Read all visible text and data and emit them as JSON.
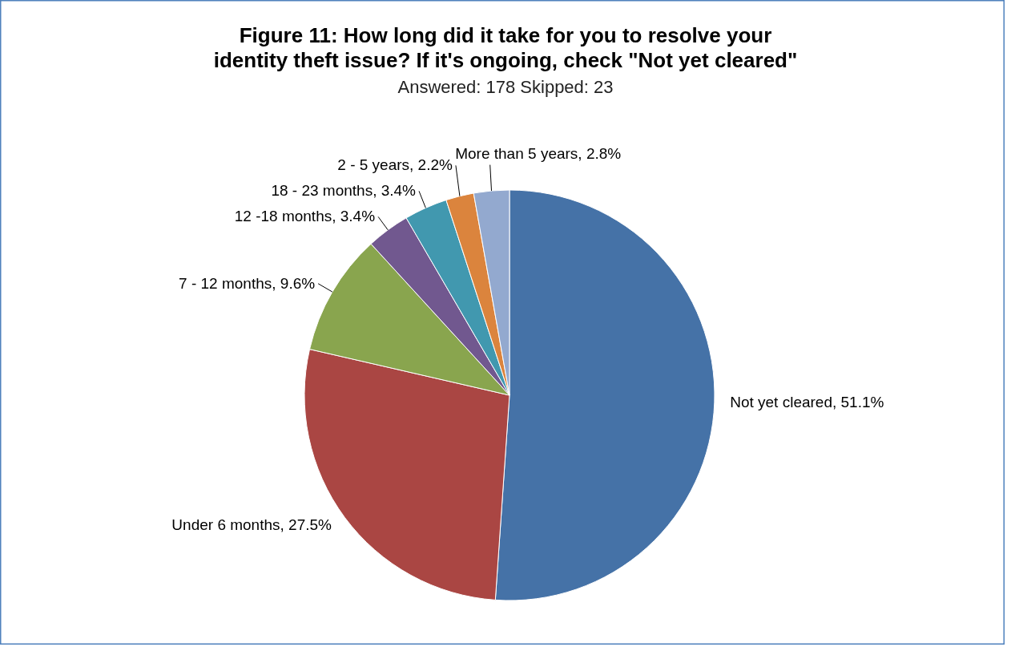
{
  "chart_data": {
    "type": "pie",
    "title": "Figure 11:  How long did it take for you to resolve your identity theft issue? If it's ongoing, check \"Not yet cleared\"",
    "subtitle": "Answered: 178  Skipped: 23",
    "categories": [
      "Not yet cleared",
      "Under 6 months",
      "7 - 12 months",
      "12 -18 months",
      "18 - 23 months",
      "2 - 5 years",
      "More than 5 years"
    ],
    "values": [
      51.1,
      27.5,
      9.6,
      3.4,
      3.4,
      2.2,
      2.8
    ],
    "value_labels": [
      "51.1%",
      "27.5%",
      "9.6%",
      "3.4%",
      "3.4%",
      "2.2%",
      "2.8%"
    ],
    "colors": [
      "#4572a7",
      "#aa4643",
      "#89a54e",
      "#71588f",
      "#4198af",
      "#db843d",
      "#93a9cf"
    ]
  }
}
